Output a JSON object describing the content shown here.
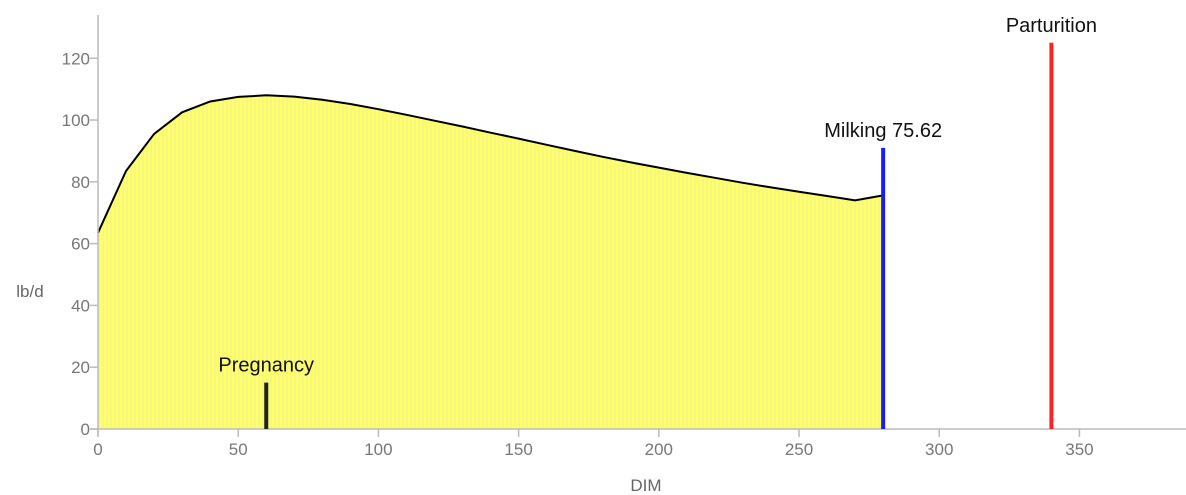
{
  "chart_data": {
    "type": "area",
    "xlabel": "DIM",
    "ylabel": "lb/d",
    "xlim": [
      0,
      388
    ],
    "ylim": [
      0,
      134
    ],
    "xticks": [
      0,
      50,
      100,
      150,
      200,
      250,
      300,
      350
    ],
    "yticks": [
      0,
      20,
      40,
      60,
      80,
      100,
      120
    ],
    "grid": false,
    "legend": "none",
    "series": [
      {
        "x": [
          0,
          10,
          20,
          30,
          40,
          50,
          60,
          70,
          80,
          90,
          100,
          110,
          120,
          130,
          140,
          150,
          160,
          170,
          180,
          190,
          200,
          210,
          220,
          230,
          240,
          250,
          260,
          270,
          280
        ],
        "values": [
          63.5,
          83.5,
          95.5,
          102.5,
          106,
          107.5,
          108,
          107.6,
          106.6,
          105.2,
          103.5,
          101.7,
          99.8,
          97.9,
          95.9,
          94,
          92,
          90,
          88.1,
          86.3,
          84.6,
          82.9,
          81.3,
          79.7,
          78.2,
          76.8,
          75.4,
          74,
          75.62
        ],
        "fill": "#ffff66",
        "hatch": "#eeee99",
        "line": "#000000"
      }
    ],
    "markers": [
      {
        "label": "Pregnancy",
        "x": 60,
        "y": 15,
        "color": "#222222"
      },
      {
        "label": "Milking 75.62",
        "x": 280,
        "y": 91,
        "color": "#1a1aff"
      },
      {
        "label": "Parturition",
        "x": 340,
        "y": 125,
        "color": "#ff2222"
      }
    ]
  }
}
